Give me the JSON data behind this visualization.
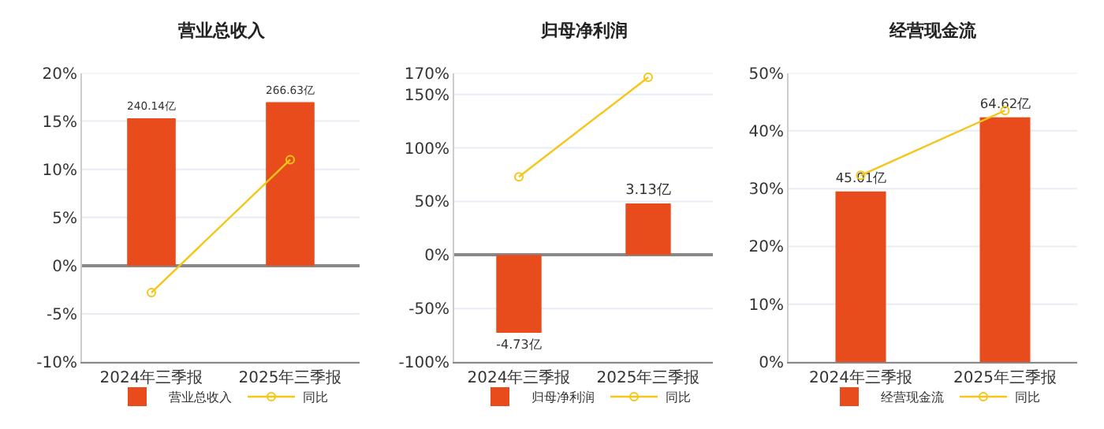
{
  "chart_data": [
    {
      "type": "bar",
      "title": "营业总收入",
      "categories": [
        "2024年三季报",
        "2025年三季报"
      ],
      "series": [
        {
          "name": "营业总收入",
          "axis": "y2",
          "color": "#e84c1d",
          "values": [
            240.14,
            266.63
          ],
          "value_labels": [
            "240.14亿",
            "266.63亿"
          ]
        },
        {
          "name": "同比",
          "type": "line",
          "color": "#f5c518",
          "values": [
            -2.8,
            11.0
          ],
          "marker": "circle"
        }
      ],
      "ylim": [
        -10,
        20
      ],
      "yticks": [
        {
          "value": -10,
          "label": "-10%"
        },
        {
          "value": -5,
          "label": "-5%"
        },
        {
          "value": 0,
          "label": "0%"
        },
        {
          "value": 5,
          "label": "5%"
        },
        {
          "value": 10,
          "label": "10%"
        },
        {
          "value": 15,
          "label": "15%"
        },
        {
          "value": 20,
          "label": "20%"
        }
      ],
      "y2lim": [
        -157,
        314
      ],
      "tick_labels": "xy",
      "grid": "y",
      "legend": "bottom"
    },
    {
      "type": "bar",
      "title": "归母净利润",
      "categories": [
        "2024年三季报",
        "2025年三季报"
      ],
      "series": [
        {
          "name": "归母净利润",
          "axis": "y2",
          "color": "#e84c1d",
          "values": [
            -4.73,
            3.13
          ],
          "value_labels": [
            "-4.73亿",
            "3.13亿"
          ]
        },
        {
          "name": "同比",
          "type": "line",
          "color": "#f5c518",
          "values": [
            73,
            166
          ],
          "marker": "circle"
        }
      ],
      "ylim": [
        -100,
        170
      ],
      "yticks": [
        {
          "value": -100,
          "label": "-100%"
        },
        {
          "value": -50,
          "label": "-50%"
        },
        {
          "value": 0,
          "label": "0%"
        },
        {
          "value": 50,
          "label": "50%"
        },
        {
          "value": 100,
          "label": "100%"
        },
        {
          "value": 150,
          "label": "150%"
        },
        {
          "value": 170,
          "label": "170%"
        }
      ],
      "y2lim": [
        -6.5,
        11.05
      ],
      "tick_labels": "xy",
      "grid": "y",
      "legend": "bottom"
    },
    {
      "type": "bar",
      "title": "经营现金流",
      "categories": [
        "2024年三季报",
        "2025年三季报"
      ],
      "series": [
        {
          "name": "经营现金流",
          "axis": "y2",
          "color": "#e84c1d",
          "values": [
            45.01,
            64.62
          ],
          "value_labels": [
            "45.01亿",
            "64.62亿"
          ]
        },
        {
          "name": "同比",
          "type": "line",
          "color": "#f5c518",
          "values": [
            32.3,
            43.5
          ],
          "marker": "circle"
        }
      ],
      "ylim": [
        0,
        50
      ],
      "yticks": [
        {
          "value": 0,
          "label": "0%"
        },
        {
          "value": 10,
          "label": "10%"
        },
        {
          "value": 20,
          "label": "20%"
        },
        {
          "value": 30,
          "label": "30%"
        },
        {
          "value": 40,
          "label": "40%"
        },
        {
          "value": 50,
          "label": "50%"
        }
      ],
      "y2lim": [
        0,
        76.3
      ],
      "tick_labels": "xy",
      "grid": "y",
      "legend": "bottom"
    }
  ]
}
